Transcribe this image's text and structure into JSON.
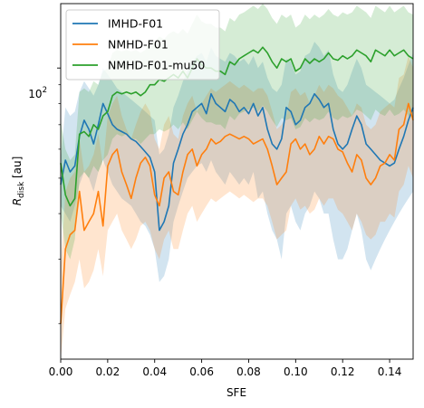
{
  "chart_data": {
    "type": "line",
    "title": "",
    "xlabel": "SFE",
    "ylabel": "R_disk [au]",
    "ylabel_main": "R",
    "ylabel_sub": "disk",
    "ylabel_unit": " [au]",
    "xlim": [
      0.0,
      0.15
    ],
    "ylim": [
      16,
      150
    ],
    "yscale": "log",
    "x_ticks": [
      "0.00",
      "0.02",
      "0.04",
      "0.06",
      "0.08",
      "0.10",
      "0.12",
      "0.14"
    ],
    "y_tick_base": "10",
    "y_tick_exp": "2",
    "grid": false,
    "legend_position": "top-left",
    "x": [
      0.0,
      0.002,
      0.004,
      0.006,
      0.008,
      0.01,
      0.012,
      0.014,
      0.016,
      0.018,
      0.02,
      0.022,
      0.024,
      0.026,
      0.028,
      0.03,
      0.032,
      0.034,
      0.036,
      0.038,
      0.04,
      0.042,
      0.044,
      0.046,
      0.048,
      0.05,
      0.052,
      0.054,
      0.056,
      0.058,
      0.06,
      0.062,
      0.064,
      0.066,
      0.068,
      0.07,
      0.072,
      0.074,
      0.076,
      0.078,
      0.08,
      0.082,
      0.084,
      0.086,
      0.088,
      0.09,
      0.092,
      0.094,
      0.096,
      0.098,
      0.1,
      0.102,
      0.104,
      0.106,
      0.108,
      0.11,
      0.112,
      0.114,
      0.116,
      0.118,
      0.12,
      0.122,
      0.124,
      0.126,
      0.128,
      0.13,
      0.132,
      0.134,
      0.136,
      0.138,
      0.14,
      0.142,
      0.144,
      0.146,
      0.148,
      0.15
    ],
    "series": [
      {
        "name": "IMHD-F01",
        "color": "#1f77b4",
        "values": [
          48,
          56,
          52,
          54,
          65,
          72,
          68,
          62,
          70,
          80,
          75,
          70,
          68,
          67,
          66,
          64,
          63,
          61,
          59,
          57,
          52,
          36,
          38,
          42,
          55,
          60,
          66,
          70,
          76,
          78,
          80,
          75,
          85,
          80,
          78,
          76,
          82,
          80,
          76,
          78,
          75,
          80,
          74,
          78,
          68,
          62,
          60,
          64,
          78,
          76,
          70,
          72,
          78,
          80,
          85,
          82,
          78,
          80,
          68,
          62,
          60,
          62,
          68,
          74,
          70,
          62,
          60,
          58,
          56,
          55,
          54,
          55,
          60,
          65,
          72,
          78
        ],
        "lower": [
          42,
          40,
          38,
          42,
          48,
          52,
          50,
          46,
          52,
          56,
          52,
          48,
          46,
          44,
          43,
          42,
          40,
          38,
          37,
          35,
          32,
          26,
          27,
          30,
          38,
          42,
          46,
          50,
          52,
          54,
          55,
          52,
          56,
          52,
          50,
          48,
          52,
          50,
          48,
          50,
          48,
          52,
          44,
          46,
          40,
          36,
          34,
          30,
          40,
          42,
          38,
          36,
          40,
          42,
          46,
          44,
          40,
          40,
          34,
          30,
          30,
          32,
          36,
          40,
          36,
          30,
          28,
          30,
          32,
          34,
          36,
          38,
          40,
          42,
          44,
          46
        ],
        "upper": [
          56,
          78,
          74,
          76,
          86,
          92,
          88,
          84,
          90,
          100,
          96,
          92,
          88,
          86,
          84,
          82,
          80,
          78,
          76,
          74,
          72,
          58,
          60,
          66,
          78,
          84,
          92,
          98,
          104,
          108,
          110,
          104,
          114,
          108,
          106,
          104,
          110,
          108,
          104,
          106,
          102,
          108,
          100,
          104,
          94,
          88,
          86,
          90,
          106,
          104,
          96,
          98,
          108,
          110,
          118,
          114,
          108,
          112,
          96,
          88,
          86,
          90,
          98,
          106,
          100,
          90,
          88,
          86,
          84,
          82,
          80,
          82,
          88,
          94,
          102,
          110
        ]
      },
      {
        "name": "NMHD-F01",
        "color": "#ff7f0e",
        "values": [
          20,
          32,
          35,
          36,
          46,
          36,
          38,
          40,
          46,
          37,
          54,
          58,
          60,
          52,
          48,
          44,
          50,
          55,
          57,
          54,
          45,
          42,
          50,
          52,
          46,
          45,
          52,
          58,
          60,
          54,
          58,
          60,
          64,
          62,
          63,
          65,
          66,
          65,
          64,
          65,
          64,
          62,
          63,
          64,
          60,
          54,
          48,
          50,
          52,
          62,
          64,
          60,
          62,
          58,
          60,
          65,
          62,
          65,
          64,
          60,
          59,
          55,
          52,
          58,
          56,
          50,
          48,
          50,
          54,
          55,
          58,
          56,
          68,
          70,
          80,
          72
        ],
        "lower": [
          16,
          22,
          24,
          26,
          30,
          25,
          26,
          28,
          32,
          27,
          36,
          38,
          40,
          36,
          34,
          32,
          34,
          37,
          38,
          36,
          32,
          30,
          34,
          36,
          32,
          32,
          36,
          40,
          42,
          38,
          40,
          42,
          44,
          43,
          44,
          45,
          46,
          45,
          44,
          45,
          44,
          43,
          44,
          44,
          42,
          38,
          34,
          35,
          36,
          42,
          44,
          41,
          42,
          40,
          41,
          44,
          42,
          44,
          44,
          41,
          40,
          38,
          36,
          40,
          38,
          35,
          34,
          35,
          38,
          38,
          40,
          39,
          46,
          48,
          54,
          50
        ],
        "upper": [
          28,
          46,
          50,
          52,
          64,
          52,
          54,
          58,
          66,
          54,
          74,
          80,
          84,
          74,
          68,
          64,
          70,
          76,
          80,
          76,
          64,
          60,
          70,
          74,
          66,
          64,
          74,
          80,
          84,
          76,
          80,
          84,
          88,
          86,
          88,
          90,
          92,
          90,
          88,
          90,
          88,
          86,
          88,
          88,
          84,
          76,
          68,
          70,
          74,
          86,
          88,
          84,
          86,
          80,
          84,
          90,
          86,
          90,
          88,
          84,
          82,
          78,
          74,
          80,
          78,
          70,
          68,
          70,
          76,
          78,
          80,
          78,
          94,
          96,
          108,
          100
        ]
      },
      {
        "name": "NMHD-F01-mu50",
        "color": "#2ca02c",
        "values": [
          55,
          45,
          42,
          44,
          66,
          67,
          65,
          70,
          68,
          74,
          76,
          84,
          86,
          85,
          86,
          85,
          86,
          84,
          86,
          90,
          90,
          93,
          92,
          94,
          96,
          94,
          98,
          94,
          100,
          106,
          102,
          100,
          100,
          98,
          98,
          96,
          104,
          102,
          106,
          108,
          110,
          112,
          110,
          114,
          110,
          104,
          100,
          106,
          104,
          106,
          98,
          100,
          106,
          103,
          106,
          104,
          106,
          110,
          106,
          105,
          108,
          106,
          108,
          112,
          110,
          108,
          104,
          112,
          110,
          108,
          112,
          108,
          110,
          112,
          108,
          106
        ],
        "lower": [
          40,
          32,
          30,
          34,
          50,
          52,
          50,
          54,
          52,
          56,
          58,
          64,
          66,
          65,
          66,
          64,
          64,
          62,
          64,
          66,
          66,
          68,
          67,
          68,
          70,
          68,
          71,
          68,
          72,
          76,
          73,
          71,
          71,
          70,
          70,
          68,
          74,
          72,
          75,
          76,
          77,
          78,
          76,
          79,
          76,
          72,
          69,
          73,
          72,
          73,
          68,
          69,
          73,
          71,
          73,
          72,
          73,
          76,
          73,
          72,
          74,
          73,
          74,
          77,
          76,
          74,
          72,
          77,
          75,
          74,
          77,
          74,
          75,
          77,
          74,
          73
        ],
        "upper": [
          72,
          60,
          56,
          58,
          86,
          88,
          86,
          92,
          90,
          98,
          100,
          110,
          112,
          111,
          112,
          111,
          112,
          110,
          112,
          118,
          118,
          122,
          120,
          124,
          126,
          124,
          128,
          124,
          132,
          140,
          134,
          132,
          132,
          129,
          129,
          126,
          137,
          134,
          140,
          142,
          145,
          148,
          145,
          150,
          145,
          137,
          132,
          140,
          137,
          140,
          129,
          132,
          140,
          136,
          140,
          137,
          140,
          145,
          140,
          138,
          142,
          140,
          142,
          148,
          145,
          142,
          137,
          148,
          145,
          142,
          148,
          142,
          145,
          148,
          142,
          140
        ]
      }
    ]
  }
}
